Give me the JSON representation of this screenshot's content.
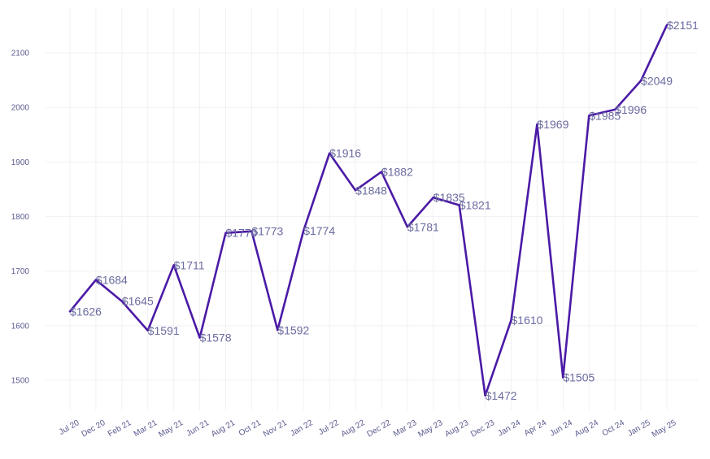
{
  "chart_data": {
    "type": "line",
    "title": "",
    "xlabel": "",
    "ylabel": "",
    "categories": [
      "Jul 20",
      "Dec 20",
      "Feb 21",
      "Mar 21",
      "May 21",
      "Jun 21",
      "Aug 21",
      "Oct 21",
      "Nov 21",
      "Jan 22",
      "Jul 22",
      "Aug 22",
      "Dec 22",
      "Mar 23",
      "May 23",
      "Aug 23",
      "Dec 23",
      "Jan 24",
      "Apr 24",
      "Jun 24",
      "Aug 24",
      "Oct 24",
      "Jan 25",
      "May 25"
    ],
    "values": [
      1626,
      1684,
      1645,
      1591,
      1711,
      1578,
      1770,
      1773,
      1592,
      1774,
      1916,
      1848,
      1882,
      1781,
      1835,
      1821,
      1472,
      1610,
      1969,
      1505,
      1985,
      1996,
      2049,
      2151
    ],
    "labels": [
      "$1626",
      "$1684",
      "$1645",
      "$1591",
      "$1711",
      "$1578",
      "$1770",
      "$1773",
      "$1592",
      "$1774",
      "$1916",
      "$1848",
      "$1882",
      "$1781",
      "$1835",
      "$1821",
      "$1472",
      "$1610",
      "$1969",
      "$1505",
      "$1985",
      "$1996",
      "$2049",
      "$2151"
    ],
    "yticks": [
      1500,
      1600,
      1700,
      1800,
      1900,
      2000,
      2100
    ],
    "ylim": [
      1445,
      2182
    ],
    "grid": true,
    "line_color": "#4b1aa6"
  }
}
